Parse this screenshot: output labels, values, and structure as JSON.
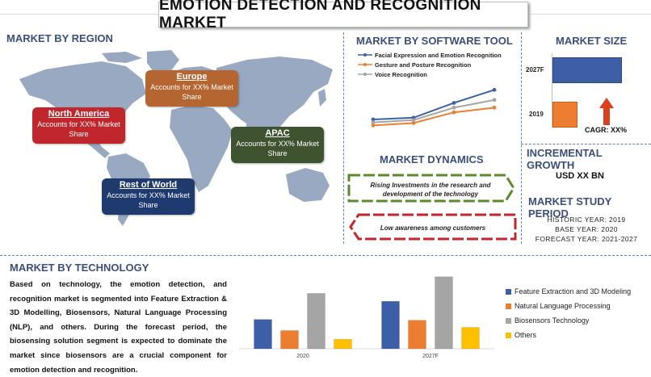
{
  "title": "EMOTION DETECTION AND RECOGNITION MARKET",
  "region": {
    "heading": "MARKET BY REGION",
    "boxes": [
      {
        "name": "North America",
        "text": "Accounts for XX% Market Share",
        "color": "#c0272d"
      },
      {
        "name": "Europe",
        "text": "Accounts for XX% Market Share",
        "color": "#b5652f"
      },
      {
        "name": "APAC",
        "text": "Accounts for XX% Market Share",
        "color": "#3f5330"
      },
      {
        "name": "Rest of World",
        "text": "Accounts for XX% Market Share",
        "color": "#1f3a6e"
      }
    ]
  },
  "software": {
    "heading": "MARKET BY SOFTWARE TOOL",
    "legend": [
      "Facial Expression and Emotion Recognition",
      "Gesture and Posture Recognition",
      "Voice Recognition"
    ],
    "colors": [
      "#3c5fa8",
      "#ed7d31",
      "#a5a5a5"
    ]
  },
  "size": {
    "heading": "MARKET SIZE",
    "years": [
      "2027F",
      "2019"
    ],
    "cagr": "CAGR: XX%"
  },
  "growth": {
    "heading": "INCREMENTAL GROWTH",
    "value": "USD XX BN"
  },
  "dynamics": {
    "heading": "MARKET DYNAMICS",
    "driver": "Rising Investments in the research and development of the technology",
    "restraint": "Low awareness among customers"
  },
  "study": {
    "heading": "MARKET STUDY PERIOD",
    "historic": "HISTORIC YEAR: 2019",
    "base": "BASE YEAR: 2020",
    "forecast": "FORECAST YEAR: 2021-2027"
  },
  "technology": {
    "heading": "MARKET BY TECHNOLOGY",
    "paragraph": "Based on technology, the emotion detection, and recognition market is segmented into Feature Extraction & 3D Modelling, Biosensors, Natural Language Processing (NLP), and others. During the forecast period, the biosensing solution segment is expected to dominate the market since biosensors are a crucial component for emotion detection and recognition.",
    "legend": [
      "Feature Extraction and 3D Modeling",
      "Natural Language Processing",
      "Biosensors Technology",
      "Others"
    ],
    "colors": [
      "#3c5fa8",
      "#ed7d31",
      "#a5a5a5",
      "#ffc000"
    ]
  },
  "chart_data": [
    {
      "type": "line",
      "x": [
        "1",
        "2",
        "3",
        "4"
      ],
      "series": [
        {
          "name": "Facial Expression and Emotion Recognition",
          "values": [
            3.0,
            3.3,
            5.8,
            8.0
          ]
        },
        {
          "name": "Gesture and Posture Recognition",
          "values": [
            2.0,
            2.4,
            4.2,
            5.0
          ]
        },
        {
          "name": "Voice Recognition",
          "values": [
            2.5,
            2.9,
            5.0,
            6.3
          ]
        }
      ],
      "ylim": [
        0,
        9
      ]
    },
    {
      "type": "bar",
      "categories": [
        "2027F",
        "2019"
      ],
      "values": [
        100,
        35
      ]
    },
    {
      "type": "bar",
      "categories": [
        "2020",
        "2027F"
      ],
      "series": [
        {
          "name": "Feature Extraction and 3D Modeling",
          "values": [
            37,
            60
          ]
        },
        {
          "name": "Natural Language Processing",
          "values": [
            23,
            36
          ]
        },
        {
          "name": "Biosensors Technology",
          "values": [
            70,
            91
          ]
        },
        {
          "name": "Others",
          "values": [
            12,
            27
          ]
        }
      ],
      "ylim": [
        0,
        100
      ]
    }
  ]
}
